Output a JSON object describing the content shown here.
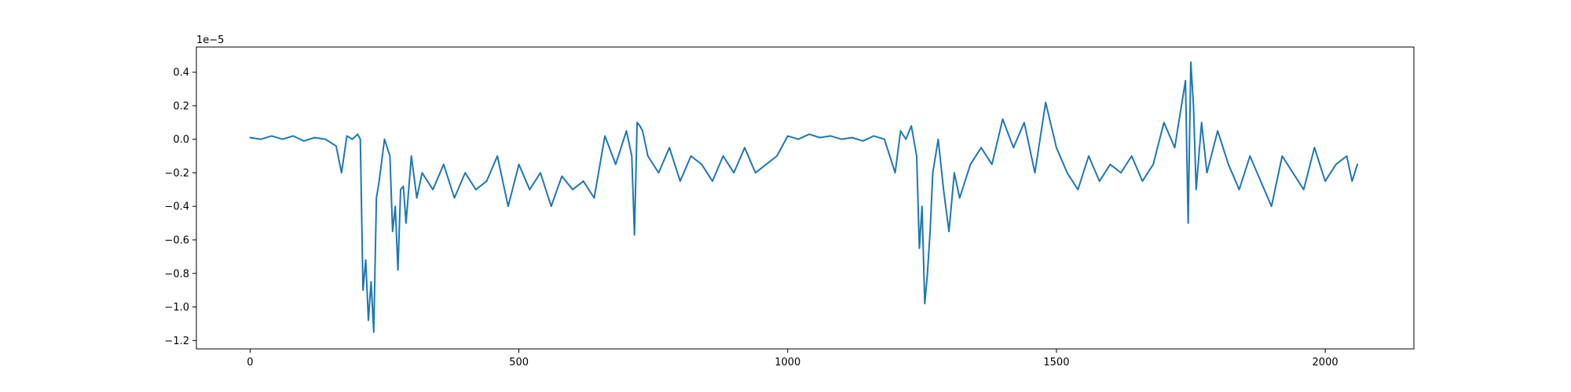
{
  "chart_data": {
    "type": "line",
    "title": "",
    "xlabel": "",
    "ylabel": "",
    "y_offset_label": "1e−5",
    "xlim": [
      -100,
      2165
    ],
    "ylim": [
      -1.25,
      0.55
    ],
    "x_ticks": [
      0,
      500,
      1000,
      1500,
      2000
    ],
    "x_tick_labels": [
      "0",
      "500",
      "1000",
      "1500",
      "2000"
    ],
    "y_ticks": [
      0.4,
      0.2,
      0.0,
      -0.2,
      -0.4,
      -0.6,
      -0.8,
      -1.0,
      -1.2
    ],
    "y_tick_labels": [
      "0.4",
      "0.2",
      "0.0",
      "−0.2",
      "−0.4",
      "−0.6",
      "−0.8",
      "−1.0",
      "−1.2"
    ],
    "grid": false,
    "legend": "none",
    "series": [
      {
        "color": "#1f77b4",
        "x": [
          0,
          20,
          40,
          60,
          80,
          100,
          120,
          140,
          160,
          170,
          180,
          190,
          200,
          205,
          210,
          215,
          220,
          225,
          230,
          235,
          240,
          250,
          260,
          265,
          270,
          275,
          280,
          285,
          290,
          300,
          310,
          320,
          340,
          360,
          380,
          400,
          420,
          440,
          460,
          480,
          500,
          520,
          540,
          560,
          580,
          600,
          620,
          640,
          660,
          680,
          690,
          700,
          710,
          715,
          720,
          725,
          730,
          740,
          760,
          780,
          800,
          820,
          840,
          860,
          880,
          900,
          920,
          940,
          960,
          980,
          1000,
          1020,
          1040,
          1060,
          1080,
          1100,
          1120,
          1140,
          1160,
          1180,
          1200,
          1210,
          1220,
          1230,
          1240,
          1245,
          1250,
          1255,
          1260,
          1265,
          1270,
          1280,
          1290,
          1300,
          1310,
          1320,
          1340,
          1360,
          1380,
          1400,
          1420,
          1440,
          1460,
          1480,
          1500,
          1520,
          1540,
          1560,
          1580,
          1600,
          1620,
          1640,
          1660,
          1680,
          1700,
          1720,
          1740,
          1745,
          1750,
          1755,
          1760,
          1770,
          1780,
          1800,
          1820,
          1840,
          1860,
          1880,
          1900,
          1920,
          1940,
          1960,
          1980,
          2000,
          2020,
          2040,
          2050,
          2060
        ],
        "y": [
          0.01,
          0.0,
          0.02,
          0.0,
          0.02,
          -0.01,
          0.01,
          0.0,
          -0.04,
          -0.2,
          0.02,
          0.0,
          0.03,
          0.0,
          -0.9,
          -0.72,
          -1.08,
          -0.85,
          -1.15,
          -0.35,
          -0.25,
          0.0,
          -0.1,
          -0.55,
          -0.4,
          -0.78,
          -0.3,
          -0.28,
          -0.5,
          -0.1,
          -0.35,
          -0.2,
          -0.3,
          -0.15,
          -0.35,
          -0.2,
          -0.3,
          -0.25,
          -0.1,
          -0.4,
          -0.15,
          -0.3,
          -0.2,
          -0.4,
          -0.22,
          -0.3,
          -0.25,
          -0.35,
          0.02,
          -0.15,
          -0.05,
          0.05,
          -0.1,
          -0.57,
          0.1,
          0.08,
          0.05,
          -0.1,
          -0.2,
          -0.05,
          -0.25,
          -0.1,
          -0.15,
          -0.25,
          -0.1,
          -0.2,
          -0.05,
          -0.2,
          -0.15,
          -0.1,
          0.02,
          0.0,
          0.03,
          0.01,
          0.02,
          0.0,
          0.01,
          -0.01,
          0.02,
          0.0,
          -0.2,
          0.05,
          0.0,
          0.08,
          -0.1,
          -0.65,
          -0.4,
          -0.98,
          -0.8,
          -0.55,
          -0.2,
          0.0,
          -0.3,
          -0.55,
          -0.2,
          -0.35,
          -0.15,
          -0.05,
          -0.15,
          0.12,
          -0.05,
          0.1,
          -0.2,
          0.22,
          -0.05,
          -0.2,
          -0.3,
          -0.1,
          -0.25,
          -0.15,
          -0.2,
          -0.1,
          -0.25,
          -0.15,
          0.1,
          -0.05,
          0.35,
          -0.5,
          0.46,
          0.2,
          -0.3,
          0.1,
          -0.2,
          0.05,
          -0.15,
          -0.3,
          -0.1,
          -0.25,
          -0.4,
          -0.1,
          -0.2,
          -0.3,
          -0.05,
          -0.25,
          -0.15,
          -0.1,
          -0.25,
          -0.15
        ]
      }
    ]
  }
}
